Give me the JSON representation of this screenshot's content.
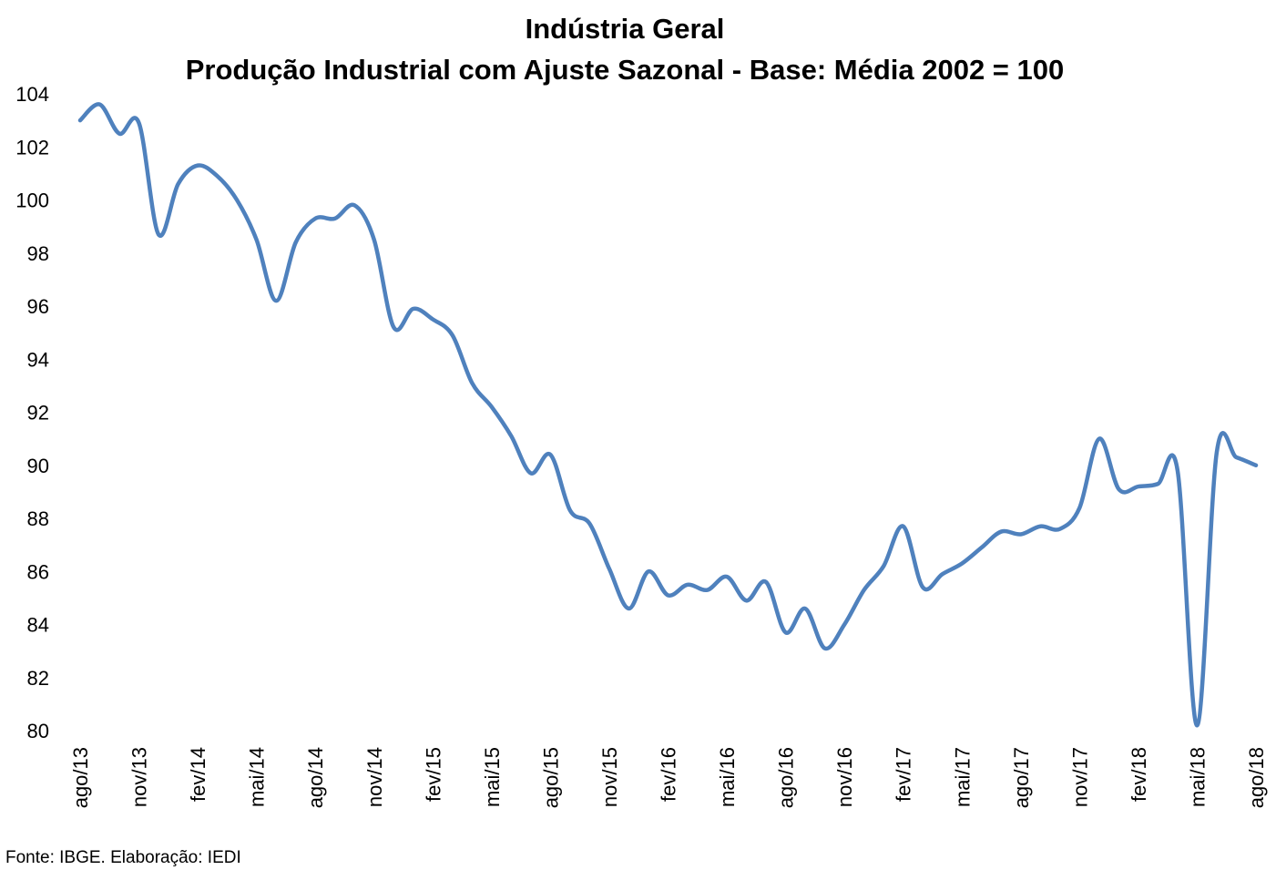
{
  "chart_data": {
    "type": "line",
    "title": "Indústria Geral",
    "subtitle": "Produção Industrial com Ajuste Sazonal - Base: Média 2002 = 100",
    "xlabel": "",
    "ylabel": "",
    "ylim": [
      80,
      104
    ],
    "yticks": [
      "80",
      "82",
      "84",
      "86",
      "88",
      "90",
      "92",
      "94",
      "96",
      "98",
      "100",
      "102",
      "104"
    ],
    "categories": [
      "ago/13",
      "set/13",
      "out/13",
      "nov/13",
      "dez/13",
      "jan/14",
      "fev/14",
      "mar/14",
      "abr/14",
      "mai/14",
      "jun/14",
      "jul/14",
      "ago/14",
      "set/14",
      "out/14",
      "nov/14",
      "dez/14",
      "jan/15",
      "fev/15",
      "mar/15",
      "abr/15",
      "mai/15",
      "jun/15",
      "jul/15",
      "ago/15",
      "set/15",
      "out/15",
      "nov/15",
      "dez/15",
      "jan/16",
      "fev/16",
      "mar/16",
      "abr/16",
      "mai/16",
      "jun/16",
      "jul/16",
      "ago/16",
      "set/16",
      "out/16",
      "nov/16",
      "dez/16",
      "jan/17",
      "fev/17",
      "mar/17",
      "abr/17",
      "mai/17",
      "jun/17",
      "jul/17",
      "ago/17",
      "set/17",
      "out/17",
      "nov/17",
      "dez/17",
      "jan/18",
      "fev/18",
      "mar/18",
      "abr/18",
      "mai/18",
      "jun/18",
      "jul/18",
      "ago/18"
    ],
    "xtick_labels": [
      "ago/13",
      "nov/13",
      "fev/14",
      "mai/14",
      "ago/14",
      "nov/14",
      "fev/15",
      "mai/15",
      "ago/15",
      "nov/15",
      "fev/16",
      "mai/16",
      "ago/16",
      "nov/16",
      "fev/17",
      "mai/17",
      "ago/17",
      "nov/17",
      "fev/18",
      "mai/18",
      "ago/18"
    ],
    "series": [
      {
        "color": "#4F81BD",
        "values": [
          103.0,
          103.6,
          102.5,
          102.9,
          98.7,
          100.6,
          101.3,
          100.9,
          100.0,
          98.5,
          96.2,
          98.4,
          99.3,
          99.3,
          99.8,
          98.5,
          95.2,
          95.9,
          95.5,
          94.9,
          93.1,
          92.2,
          91.1,
          89.7,
          90.4,
          88.3,
          87.8,
          86.1,
          84.6,
          86.0,
          85.1,
          85.5,
          85.3,
          85.8,
          84.9,
          85.6,
          83.7,
          84.6,
          83.1,
          84.0,
          85.3,
          86.2,
          87.7,
          85.4,
          85.9,
          86.3,
          86.9,
          87.5,
          87.4,
          87.7,
          87.6,
          88.4,
          91.0,
          89.1,
          89.2,
          89.3,
          89.8,
          80.2,
          90.5,
          90.3,
          90.0
        ]
      }
    ],
    "grid": false,
    "legend": "none",
    "source_note": "Fonte: IBGE. Elaboração: IEDI"
  }
}
